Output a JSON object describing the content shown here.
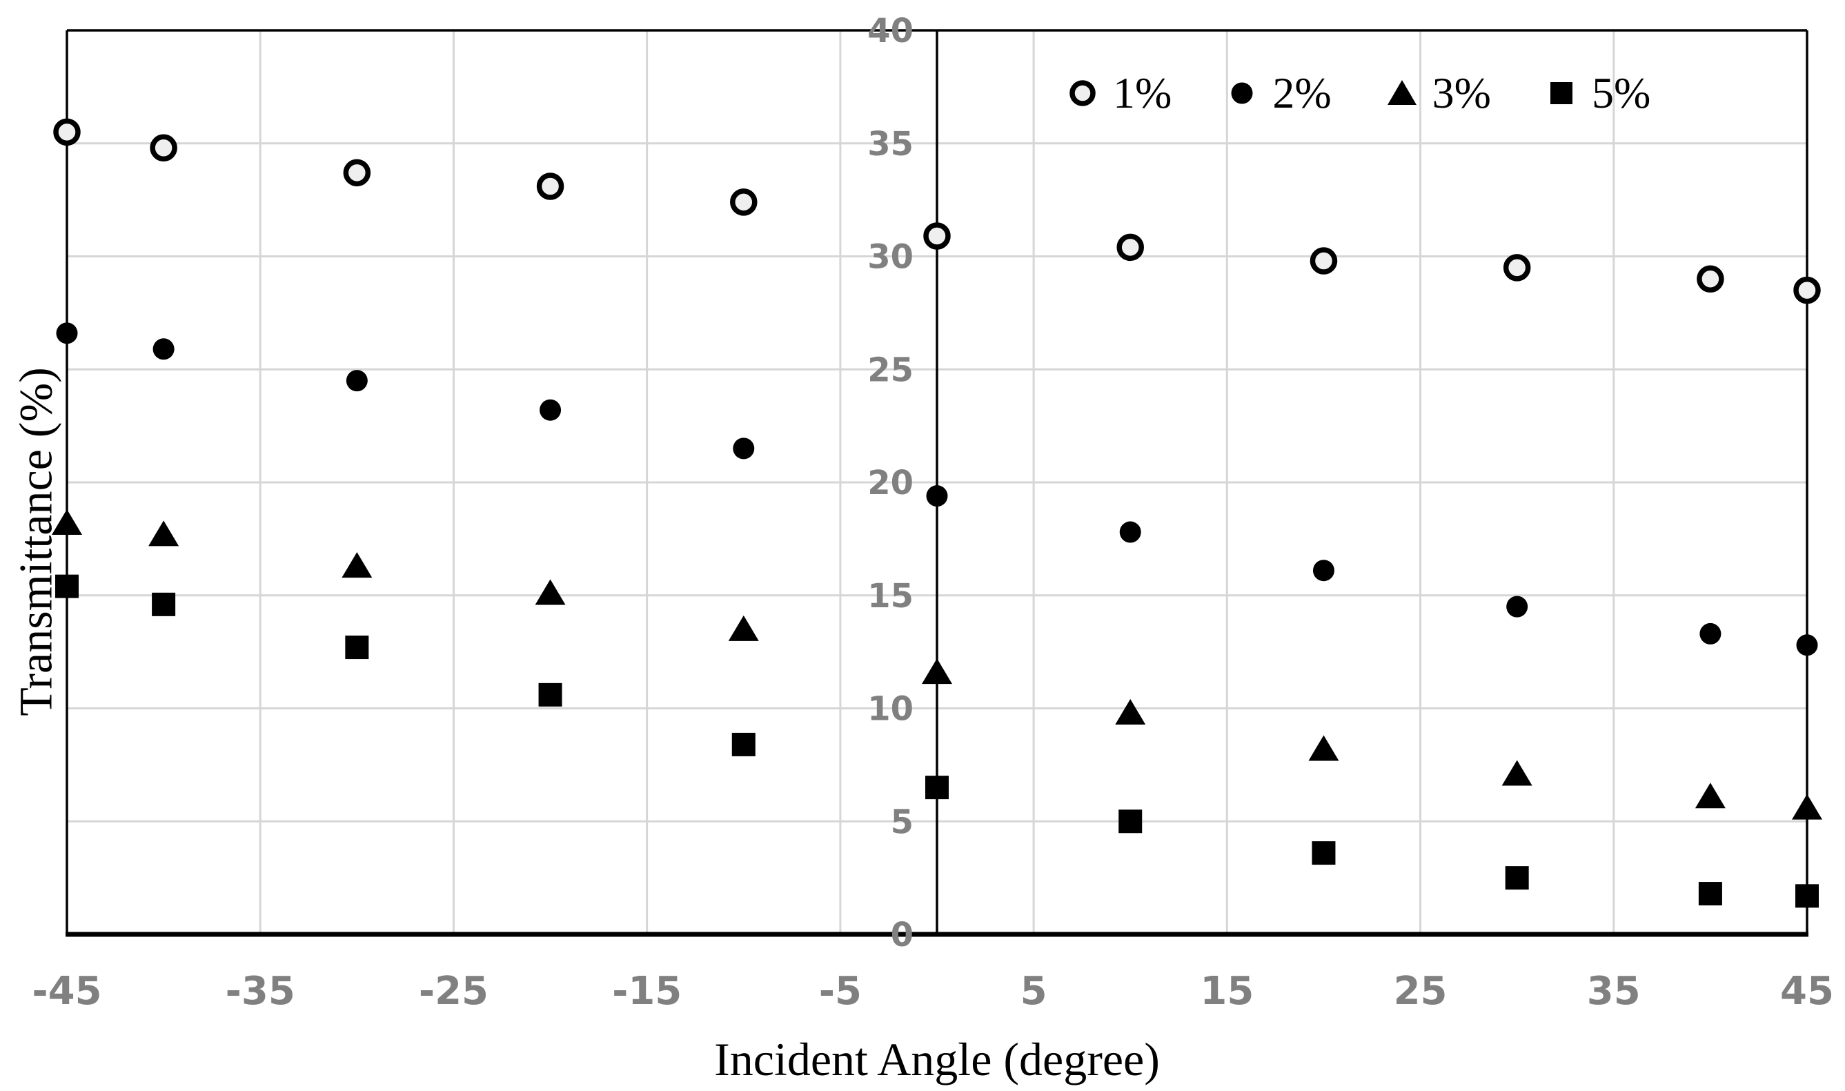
{
  "chart_data": {
    "type": "scatter",
    "title": "",
    "xlabel": "Incident Angle (degree)",
    "ylabel": "Transmittance (%)",
    "xlim": [
      -45,
      45
    ],
    "ylim": [
      0,
      40
    ],
    "x_ticks": [
      -45,
      -35,
      -25,
      -15,
      -5,
      5,
      15,
      25,
      35,
      45
    ],
    "y_ticks": [
      0,
      5,
      10,
      15,
      20,
      25,
      30,
      35,
      40
    ],
    "grid": true,
    "gridline_step_x": 10,
    "gridline_step_y": 5,
    "legend_position": "top-right-inside",
    "x": [
      -45,
      -40,
      -30,
      -20,
      -10,
      0,
      10,
      20,
      30,
      40,
      45
    ],
    "series": [
      {
        "name": "1%",
        "marker": "open-circle",
        "values": [
          35.5,
          34.8,
          33.7,
          33.1,
          32.4,
          30.9,
          30.4,
          29.8,
          29.5,
          29.0,
          28.5
        ]
      },
      {
        "name": "2%",
        "marker": "filled-circle",
        "values": [
          26.6,
          25.9,
          24.5,
          23.2,
          21.5,
          19.4,
          17.8,
          16.1,
          14.5,
          13.3,
          12.8
        ]
      },
      {
        "name": "3%",
        "marker": "filled-triangle",
        "values": [
          18.2,
          17.7,
          16.3,
          15.1,
          13.5,
          11.6,
          9.8,
          8.2,
          7.1,
          6.1,
          5.6
        ]
      },
      {
        "name": "5%",
        "marker": "filled-square",
        "values": [
          15.4,
          14.6,
          12.7,
          10.6,
          8.4,
          6.5,
          5.0,
          3.6,
          2.5,
          1.8,
          1.7
        ]
      }
    ],
    "colors": {
      "marker": "#000000",
      "open_marker_fill": "#efefef",
      "grid": "#d6d6d6",
      "axis": "#000000",
      "tick_label": "#808080",
      "background": "#ffffff"
    }
  }
}
